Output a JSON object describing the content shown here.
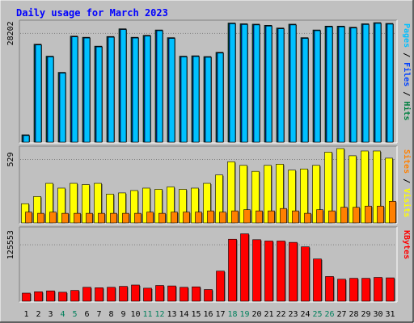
{
  "chart_data": {
    "type": "bar",
    "title": "Daily usage for March 2023",
    "categories": [
      "1",
      "2",
      "3",
      "4",
      "5",
      "6",
      "7",
      "8",
      "9",
      "10",
      "11",
      "12",
      "13",
      "14",
      "15",
      "16",
      "17",
      "18",
      "19",
      "20",
      "21",
      "22",
      "23",
      "24",
      "25",
      "26",
      "27",
      "28",
      "29",
      "30",
      "31"
    ],
    "weekend_days": [
      "4",
      "5",
      "11",
      "12",
      "18",
      "19",
      "25",
      "26"
    ],
    "panels": [
      {
        "id": "hits",
        "y_tick_label": "28202",
        "ylim": [
          0,
          31000
        ],
        "series": [
          {
            "name": "Hits",
            "color": "#008040",
            "values": [
              1900,
              25400,
              22300,
              18100,
              27500,
              27200,
              24900,
              27400,
              29400,
              27200,
              27700,
              29100,
              27100,
              22300,
              22400,
              22200,
              23300,
              30900,
              30700,
              30600,
              30300,
              29600,
              30600,
              27100,
              29100,
              30100,
              30100,
              29800,
              30700,
              31000,
              30800
            ]
          },
          {
            "name": "Files",
            "color": "#0040ff",
            "values": [
              1800,
              25300,
              22200,
              18000,
              27400,
              27100,
              24800,
              27300,
              29300,
              27100,
              27600,
              29000,
              27000,
              22200,
              22300,
              22100,
              23200,
              30800,
              30600,
              30500,
              30200,
              29500,
              30500,
              27000,
              29000,
              30000,
              30000,
              29700,
              30600,
              30900,
              30700
            ]
          },
          {
            "name": "Pages",
            "color": "#00c0ff",
            "values": [
              1700,
              25200,
              22100,
              17900,
              27300,
              27000,
              24700,
              27200,
              29200,
              27000,
              27500,
              28900,
              26900,
              22100,
              22200,
              22000,
              23100,
              30700,
              30500,
              30400,
              30100,
              29400,
              30400,
              26900,
              28900,
              29900,
              29900,
              29600,
              30500,
              30800,
              30600
            ]
          }
        ]
      },
      {
        "id": "visits",
        "y_tick_label": "529",
        "ylim": [
          0,
          620
        ],
        "series": [
          {
            "name": "Visits",
            "color": "#ffff00",
            "values": [
              160,
              220,
              330,
              290,
              330,
              320,
              330,
              240,
              250,
              270,
              290,
              280,
              300,
              280,
              290,
              330,
              400,
              510,
              480,
              430,
              480,
              490,
              440,
              450,
              480,
              590,
              620,
              560,
              600,
              600,
              540
            ]
          },
          {
            "name": "Sites",
            "color": "#ff8000",
            "values": [
              90,
              80,
              90,
              80,
              80,
              80,
              80,
              80,
              80,
              80,
              90,
              80,
              90,
              90,
              90,
              100,
              90,
              100,
              110,
              100,
              100,
              120,
              100,
              80,
              110,
              100,
              130,
              130,
              140,
              140,
              180
            ]
          }
        ]
      },
      {
        "id": "kbytes",
        "y_tick_label": "125553",
        "ylim": [
          0,
          160000
        ],
        "series": [
          {
            "name": "KBytes",
            "color": "#ff0000",
            "values": [
              18000,
              21000,
              23000,
              20000,
              24000,
              31000,
              30000,
              31000,
              33000,
              36000,
              29000,
              35000,
              34000,
              31000,
              32000,
              26000,
              67000,
              138000,
              150000,
              137000,
              134000,
              134000,
              131000,
              121000,
              94000,
              55000,
              49000,
              51000,
              51000,
              53000,
              52000
            ]
          }
        ]
      }
    ]
  },
  "colors": {
    "background": "#c0c0c0",
    "title": "#0000ff",
    "axis_text": "#000000",
    "weekend_text": "#00805c",
    "slash": "#000000"
  }
}
